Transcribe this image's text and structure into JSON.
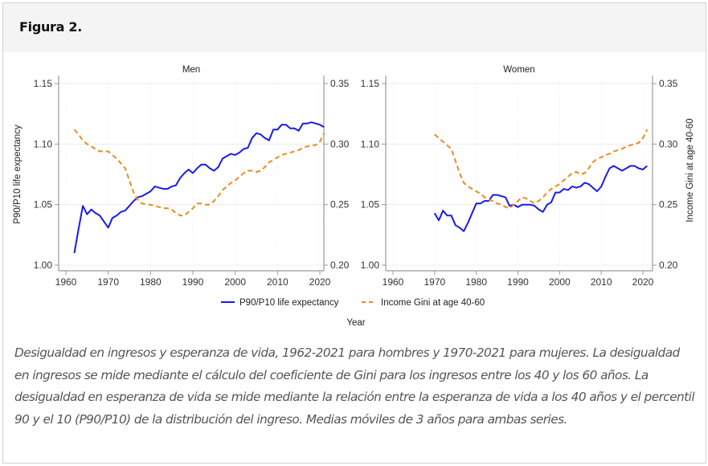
{
  "figure": {
    "title": "Figura 2.",
    "caption": "Desigualdad en ingresos y esperanza de vida, 1962-2021 para hombres y 1970-2021 para mujeres. La desigualdad en ingresos se mide mediante el cálculo del coeficiente de Gini para los ingresos entre los 40 y los 60 años. La desigualdad en esperanza de vida se mide mediante la relación entre la esperanza de vida a los 40 años y el percentil 90 y el 10 (P90/P10) de la distribución del ingreso. Medias móviles de 3 años para ambas series."
  },
  "colors": {
    "life_expectancy": "#1a1aee",
    "gini": "#ee8a1c",
    "grid": "#ececec",
    "axis": "#999999"
  },
  "chart_data": [
    {
      "type": "line",
      "title": "Men",
      "xlabel": "Year",
      "ylabel": "P90/P10 life expectancy",
      "y2label": "",
      "xlim": [
        1959,
        2022
      ],
      "xticks": [
        "1960",
        "1970",
        "1980",
        "1990",
        "2000",
        "2010",
        "2020"
      ],
      "ylim": [
        1.0,
        1.15
      ],
      "yticks": [
        "1.00",
        "1.05",
        "1.10",
        "1.15"
      ],
      "y2lim": [
        0.2,
        0.35
      ],
      "y2ticks": [
        "0.20",
        "0.25",
        "0.30",
        "0.35"
      ],
      "grid": true,
      "series": [
        {
          "name": "P90/P10 life expectancy",
          "axis": "left",
          "style": "solid",
          "x_start": 1962,
          "values": [
            1.01,
            1.03,
            1.049,
            1.042,
            1.046,
            1.043,
            1.041,
            1.036,
            1.031,
            1.039,
            1.041,
            1.044,
            1.045,
            1.049,
            1.053,
            1.056,
            1.057,
            1.059,
            1.061,
            1.065,
            1.064,
            1.063,
            1.063,
            1.065,
            1.066,
            1.072,
            1.076,
            1.079,
            1.076,
            1.08,
            1.083,
            1.083,
            1.08,
            1.078,
            1.081,
            1.088,
            1.09,
            1.092,
            1.091,
            1.093,
            1.096,
            1.097,
            1.105,
            1.109,
            1.108,
            1.105,
            1.103,
            1.112,
            1.112,
            1.116,
            1.116,
            1.113,
            1.113,
            1.111,
            1.117,
            1.117,
            1.118,
            1.117,
            1.116,
            1.114
          ]
        },
        {
          "name": "Income Gini at age 40-60",
          "axis": "right",
          "style": "dashed",
          "x_start": 1962,
          "values": [
            0.312,
            0.308,
            0.303,
            0.3,
            0.298,
            0.296,
            0.294,
            0.294,
            0.294,
            0.291,
            0.288,
            0.284,
            0.28,
            0.27,
            0.26,
            0.254,
            0.251,
            0.25,
            0.25,
            0.249,
            0.248,
            0.247,
            0.247,
            0.246,
            0.243,
            0.241,
            0.241,
            0.244,
            0.247,
            0.251,
            0.251,
            0.25,
            0.25,
            0.253,
            0.257,
            0.262,
            0.265,
            0.268,
            0.27,
            0.273,
            0.276,
            0.278,
            0.278,
            0.277,
            0.278,
            0.281,
            0.285,
            0.287,
            0.289,
            0.291,
            0.292,
            0.293,
            0.294,
            0.295,
            0.297,
            0.298,
            0.299,
            0.299,
            0.302,
            0.309
          ]
        }
      ]
    },
    {
      "type": "line",
      "title": "Women",
      "xlabel": "Year",
      "ylabel": "",
      "y2label": "Income Gini at age 40-60",
      "xlim": [
        1959,
        2022
      ],
      "xticks": [
        "1960",
        "1970",
        "1980",
        "1990",
        "2000",
        "2010",
        "2020"
      ],
      "ylim": [
        1.0,
        1.15
      ],
      "yticks": [
        "1.00",
        "1.05",
        "1.10",
        "1.15"
      ],
      "y2lim": [
        0.2,
        0.35
      ],
      "y2ticks": [
        "0.20",
        "0.25",
        "0.30",
        "0.35"
      ],
      "grid": true,
      "series": [
        {
          "name": "P90/P10 life expectancy",
          "axis": "left",
          "style": "solid",
          "x_start": 1970,
          "values": [
            1.043,
            1.037,
            1.045,
            1.041,
            1.041,
            1.033,
            1.031,
            1.028,
            1.035,
            1.043,
            1.051,
            1.051,
            1.053,
            1.053,
            1.058,
            1.058,
            1.057,
            1.056,
            1.049,
            1.05,
            1.048,
            1.05,
            1.05,
            1.05,
            1.049,
            1.046,
            1.044,
            1.05,
            1.052,
            1.06,
            1.06,
            1.063,
            1.062,
            1.065,
            1.064,
            1.065,
            1.068,
            1.067,
            1.064,
            1.061,
            1.065,
            1.073,
            1.08,
            1.082,
            1.08,
            1.078,
            1.08,
            1.082,
            1.082,
            1.08,
            1.079,
            1.082
          ]
        },
        {
          "name": "Income Gini at age 40-60",
          "axis": "right",
          "style": "dashed",
          "x_start": 1970,
          "values": [
            0.308,
            0.305,
            0.302,
            0.299,
            0.296,
            0.286,
            0.276,
            0.268,
            0.265,
            0.263,
            0.261,
            0.259,
            0.256,
            0.254,
            0.253,
            0.251,
            0.25,
            0.248,
            0.247,
            0.25,
            0.253,
            0.256,
            0.255,
            0.253,
            0.251,
            0.253,
            0.256,
            0.26,
            0.263,
            0.265,
            0.267,
            0.27,
            0.273,
            0.276,
            0.277,
            0.275,
            0.276,
            0.28,
            0.285,
            0.288,
            0.289,
            0.291,
            0.292,
            0.294,
            0.295,
            0.296,
            0.298,
            0.299,
            0.3,
            0.301,
            0.305,
            0.312
          ]
        }
      ]
    }
  ],
  "legend": {
    "placement": "bottom-center",
    "items": [
      {
        "label": "P90/P10 life expectancy",
        "style": "solid"
      },
      {
        "label": "Income Gini at age 40-60",
        "style": "dashed"
      }
    ],
    "xlabel": "Year"
  }
}
